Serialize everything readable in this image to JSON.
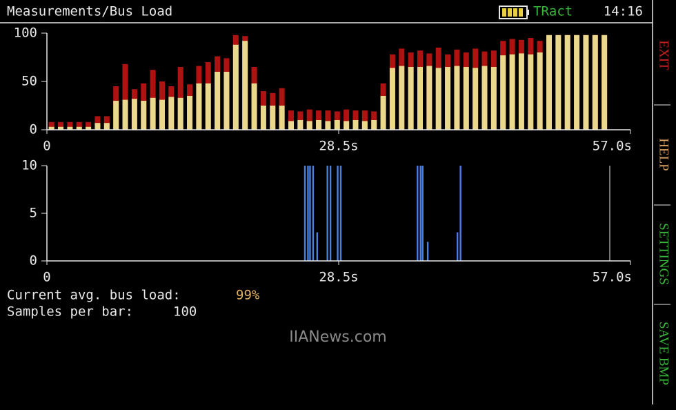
{
  "header": {
    "title": "Measurements/Bus Load",
    "status": "TRact",
    "time": "14:16"
  },
  "menu": [
    "EXIT",
    "HELP",
    "SETTINGS",
    "SAVE BMP"
  ],
  "info": {
    "load_label": "Current avg. bus load:",
    "load_value": "99%",
    "samples_label": "Samples per bar:",
    "samples_value": "100"
  },
  "watermark": "IIANews.com",
  "chart_data": [
    {
      "type": "bar",
      "x": [
        0.45,
        1.35,
        2.25,
        3.15,
        4.05,
        4.95,
        5.85,
        6.75,
        7.65,
        8.55,
        9.45,
        10.35,
        11.25,
        12.15,
        13.05,
        13.95,
        14.85,
        15.75,
        16.65,
        17.55,
        18.45,
        19.35,
        20.25,
        21.15,
        22.05,
        22.95,
        23.85,
        24.75,
        25.65,
        26.55,
        27.45,
        28.35,
        29.25,
        30.15,
        31.05,
        31.95,
        32.85,
        33.75,
        34.65,
        35.55,
        36.45,
        37.35,
        38.25,
        39.15,
        40.05,
        40.95,
        41.85,
        42.75,
        43.65,
        44.55,
        45.45,
        46.35,
        47.25,
        48.15,
        49.05,
        49.95,
        50.85,
        51.75,
        52.65,
        53.55,
        54.45
      ],
      "series": [
        {
          "color": "#b01212",
          "values": [
            8,
            8,
            8,
            8,
            8,
            14,
            14,
            45,
            68,
            42,
            48,
            62,
            50,
            45,
            65,
            47,
            66,
            70,
            76,
            74,
            98,
            97,
            65,
            40,
            38,
            43,
            20,
            19,
            21,
            20,
            20,
            19,
            21,
            20,
            20,
            19,
            48,
            78,
            84,
            80,
            82,
            79,
            85,
            78,
            83,
            80,
            84,
            81,
            82,
            92,
            94,
            93,
            95,
            92,
            98,
            98,
            98,
            98,
            98,
            98,
            98
          ]
        },
        {
          "color": "#ead98c",
          "values": [
            3,
            3,
            3,
            3,
            3,
            7,
            7,
            30,
            31,
            32,
            30,
            33,
            31,
            34,
            33,
            35,
            48,
            48,
            60,
            60,
            88,
            92,
            48,
            25,
            25,
            25,
            9,
            10,
            9,
            10,
            9,
            10,
            9,
            10,
            9,
            10,
            35,
            64,
            66,
            65,
            65,
            66,
            64,
            65,
            66,
            65,
            64,
            66,
            65,
            77,
            78,
            79,
            78,
            80,
            98,
            98,
            98,
            98,
            98,
            98,
            98
          ]
        }
      ],
      "xlim": [
        0,
        57
      ],
      "xticks": [
        0,
        {
          "value": 28.5,
          "label": "28.5s"
        },
        {
          "value": 57,
          "label": "57.0s"
        }
      ],
      "ylim": [
        0,
        100
      ],
      "yticks": [
        0,
        50,
        100
      ]
    },
    {
      "type": "bar",
      "x": [
        25.2,
        25.5,
        25.7,
        26.0,
        26.4,
        27.4,
        27.7,
        28.4,
        28.7,
        36.2,
        36.5,
        36.7,
        37.2,
        40.1,
        40.4
      ],
      "series": [
        {
          "color": "#4a80dc",
          "values": [
            10,
            10,
            10,
            10,
            3,
            10,
            10,
            10,
            10,
            10,
            10,
            10,
            2,
            3,
            10
          ]
        }
      ],
      "xlim": [
        0,
        57
      ],
      "xticks": [
        0,
        {
          "value": 28.5,
          "label": "28.5s"
        },
        {
          "value": 57,
          "label": "57.0s"
        }
      ],
      "ylim": [
        0,
        10
      ],
      "yticks": [
        0,
        5,
        10
      ]
    }
  ]
}
